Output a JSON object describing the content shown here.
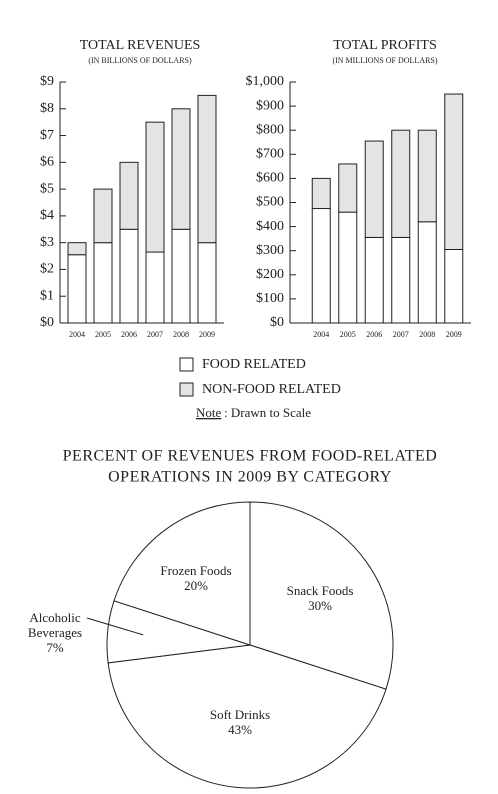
{
  "chart_data": [
    {
      "type": "bar",
      "stacked": true,
      "title": "TOTAL REVENUES",
      "subtitle": "(IN BILLIONS OF DOLLARS)",
      "categories": [
        "2004",
        "2005",
        "2006",
        "2007",
        "2008",
        "2009"
      ],
      "series": [
        {
          "name": "FOOD RELATED",
          "color": "#ffffff",
          "values": [
            2.55,
            3,
            3.5,
            2.65,
            3.5,
            3
          ]
        },
        {
          "name": "NON-FOOD RELATED",
          "color": "#e4e4e4",
          "values": [
            0.45,
            2,
            2.5,
            4.85,
            4.5,
            5.5
          ]
        }
      ],
      "ylim": [
        0,
        9
      ],
      "yticks": [
        {
          "value": 0,
          "label": "$0"
        },
        {
          "value": 1,
          "label": "$1"
        },
        {
          "value": 2,
          "label": "$2"
        },
        {
          "value": 3,
          "label": "$3"
        },
        {
          "value": 4,
          "label": "$4"
        },
        {
          "value": 5,
          "label": "$5"
        },
        {
          "value": 6,
          "label": "$6"
        },
        {
          "value": 7,
          "label": "$7"
        },
        {
          "value": 8,
          "label": "$8"
        },
        {
          "value": 9,
          "label": "$9"
        }
      ]
    },
    {
      "type": "bar",
      "stacked": true,
      "title": "TOTAL PROFITS",
      "subtitle": "(IN MILLIONS OF DOLLARS)",
      "categories": [
        "2004",
        "2005",
        "2006",
        "2007",
        "2008",
        "2009"
      ],
      "series": [
        {
          "name": "FOOD RELATED",
          "color": "#ffffff",
          "values": [
            475,
            460,
            355,
            355,
            420,
            305
          ]
        },
        {
          "name": "NON-FOOD RELATED",
          "color": "#e4e4e4",
          "values": [
            125,
            200,
            400,
            445,
            380,
            645
          ]
        }
      ],
      "ylim": [
        0,
        1000
      ],
      "yticks": [
        {
          "value": 0,
          "label": "$0"
        },
        {
          "value": 100,
          "label": "$100"
        },
        {
          "value": 200,
          "label": "$200"
        },
        {
          "value": 300,
          "label": "$300"
        },
        {
          "value": 400,
          "label": "$400"
        },
        {
          "value": 500,
          "label": "$500"
        },
        {
          "value": 600,
          "label": "$600"
        },
        {
          "value": 700,
          "label": "$700"
        },
        {
          "value": 800,
          "label": "$800"
        },
        {
          "value": 900,
          "label": "$900"
        },
        {
          "value": 1000,
          "label": "$1,000"
        }
      ]
    },
    {
      "type": "pie",
      "title": [
        "PERCENT OF REVENUES FROM FOOD-RELATED",
        "OPERATIONS IN 2009 BY CATEGORY"
      ],
      "categories": [
        "Snack Foods",
        "Soft Drinks",
        "Alcoholic Beverages",
        "Frozen Foods"
      ],
      "values": [
        30,
        43,
        7,
        20
      ],
      "value_labels": [
        "30%",
        "43%",
        "7%",
        "20%"
      ],
      "color": "#ffffff"
    }
  ],
  "note": {
    "label": "Note",
    "text": ": Drawn to Scale"
  }
}
